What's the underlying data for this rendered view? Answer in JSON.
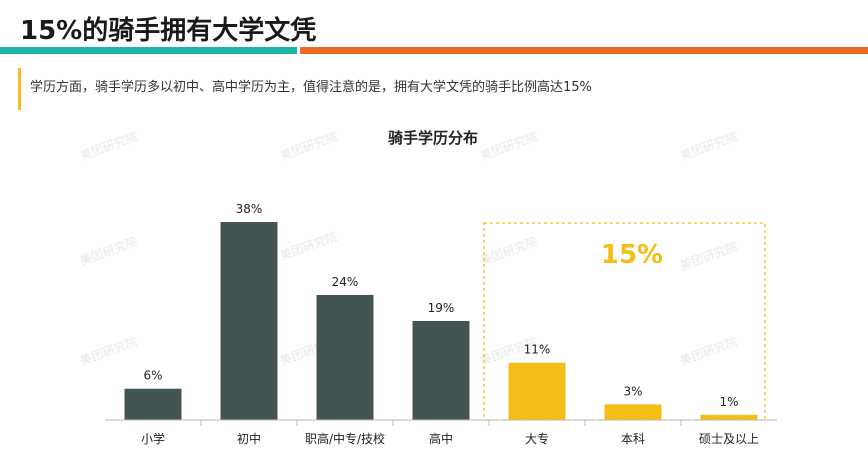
{
  "header": {
    "title": "15%的骑手拥有大学文凭",
    "subtitle": "学历方面，骑手学历多以初中、高中学历为主，值得注意的是，拥有大学文凭的骑手比例高达15%"
  },
  "watermark": "美团研究院",
  "colors": {
    "teal": "#1cb5a8",
    "orange": "#ea6b22",
    "accent": "#f5bd17",
    "dark_bar": "#435452",
    "highlight_bar": "#f5bd17"
  },
  "chart_data": {
    "type": "bar",
    "title": "骑手学历分布",
    "categories": [
      "小学",
      "初中",
      "职高/中专/技校",
      "高中",
      "大专",
      "本科",
      "硕士及以上"
    ],
    "values": [
      6,
      38,
      24,
      19,
      11,
      3,
      1
    ],
    "value_labels": [
      "6%",
      "38%",
      "24%",
      "19%",
      "11%",
      "3%",
      "1%"
    ],
    "highlighted_categories": [
      "大专",
      "本科",
      "硕士及以上"
    ],
    "highlight_annotation": "15%",
    "ylim": [
      0,
      45
    ],
    "grid": false,
    "legend": "none"
  }
}
